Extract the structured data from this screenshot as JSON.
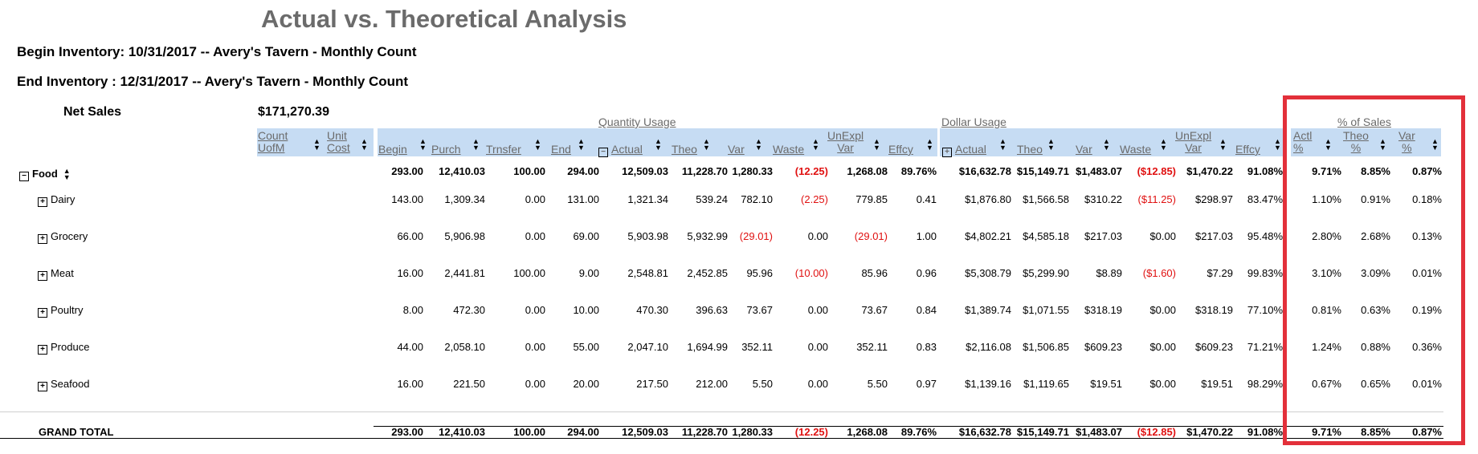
{
  "report": {
    "title": "Actual vs. Theoretical Analysis",
    "begin_inventory": "Begin Inventory: 10/31/2017 -- Avery's Tavern - Monthly Count",
    "end_inventory": "End Inventory   : 12/31/2017 -- Avery's Tavern - Monthly Count",
    "net_sales_label": "Net Sales",
    "net_sales_value": "$171,270.39"
  },
  "groups": {
    "quantity_usage": "Quantity Usage",
    "dollar_usage": "Dollar Usage",
    "pct_of_sales": "% of Sales"
  },
  "columns": {
    "count_uofm": [
      "Count",
      "UofM"
    ],
    "unit_cost": [
      "Unit",
      "Cost"
    ],
    "begin": "Begin",
    "purch": "Purch",
    "trnsfer": "Trnsfer",
    "end": "End",
    "q_actual": "Actual",
    "q_theo": "Theo",
    "q_var": "Var",
    "q_waste": "Waste",
    "q_unexpl": [
      "UnExpl",
      "Var"
    ],
    "q_effcy": "Effcy",
    "d_actual": "Actual",
    "d_theo": "Theo",
    "d_var": "Var",
    "d_waste": "Waste",
    "d_unexpl": [
      "UnExpl",
      "Var"
    ],
    "d_effcy": "Effcy",
    "p_actl": [
      "Actl",
      "%"
    ],
    "p_theo": [
      "Theo",
      "%"
    ],
    "p_var": [
      "Var",
      "%"
    ]
  },
  "rows": [
    {
      "label": "Food",
      "toggle": "−",
      "values": [
        "293.00",
        "12,410.03",
        "100.00",
        "294.00",
        "12,509.03",
        "11,228.70",
        "1,280.33",
        "(12.25)",
        "1,268.08",
        "89.76%",
        "$16,632.78",
        "$15,149.71",
        "$1,483.07",
        "($12.85)",
        "$1,470.22",
        "91.08%",
        "9.71%",
        "8.85%",
        "0.87%"
      ]
    },
    {
      "label": "Dairy",
      "toggle": "+",
      "values": [
        "143.00",
        "1,309.34",
        "0.00",
        "131.00",
        "1,321.34",
        "539.24",
        "782.10",
        "(2.25)",
        "779.85",
        "0.41",
        "$1,876.80",
        "$1,566.58",
        "$310.22",
        "($11.25)",
        "$298.97",
        "83.47%",
        "1.10%",
        "0.91%",
        "0.18%"
      ]
    },
    {
      "label": "Grocery",
      "toggle": "+",
      "values": [
        "66.00",
        "5,906.98",
        "0.00",
        "69.00",
        "5,903.98",
        "5,932.99",
        "(29.01)",
        "0.00",
        "(29.01)",
        "1.00",
        "$4,802.21",
        "$4,585.18",
        "$217.03",
        "$0.00",
        "$217.03",
        "95.48%",
        "2.80%",
        "2.68%",
        "0.13%"
      ]
    },
    {
      "label": "Meat",
      "toggle": "+",
      "values": [
        "16.00",
        "2,441.81",
        "100.00",
        "9.00",
        "2,548.81",
        "2,452.85",
        "95.96",
        "(10.00)",
        "85.96",
        "0.96",
        "$5,308.79",
        "$5,299.90",
        "$8.89",
        "($1.60)",
        "$7.29",
        "99.83%",
        "3.10%",
        "3.09%",
        "0.01%"
      ]
    },
    {
      "label": "Poultry",
      "toggle": "+",
      "values": [
        "8.00",
        "472.30",
        "0.00",
        "10.00",
        "470.30",
        "396.63",
        "73.67",
        "0.00",
        "73.67",
        "0.84",
        "$1,389.74",
        "$1,071.55",
        "$318.19",
        "$0.00",
        "$318.19",
        "77.10%",
        "0.81%",
        "0.63%",
        "0.19%"
      ]
    },
    {
      "label": "Produce",
      "toggle": "+",
      "values": [
        "44.00",
        "2,058.10",
        "0.00",
        "55.00",
        "2,047.10",
        "1,694.99",
        "352.11",
        "0.00",
        "352.11",
        "0.83",
        "$2,116.08",
        "$1,506.85",
        "$609.23",
        "$0.00",
        "$609.23",
        "71.21%",
        "1.24%",
        "0.88%",
        "0.36%"
      ]
    },
    {
      "label": "Seafood",
      "toggle": "+",
      "values": [
        "16.00",
        "221.50",
        "0.00",
        "20.00",
        "217.50",
        "212.00",
        "5.50",
        "0.00",
        "5.50",
        "0.97",
        "$1,139.16",
        "$1,119.65",
        "$19.51",
        "$0.00",
        "$19.51",
        "98.29%",
        "0.67%",
        "0.65%",
        "0.01%"
      ]
    }
  ],
  "grand_total": {
    "label": "GRAND TOTAL",
    "values": [
      "293.00",
      "12,410.03",
      "100.00",
      "294.00",
      "12,509.03",
      "11,228.70",
      "1,280.33",
      "(12.25)",
      "1,268.08",
      "89.76%",
      "$16,632.78",
      "$15,149.71",
      "$1,483.07",
      "($12.85)",
      "$1,470.22",
      "91.08%",
      "9.71%",
      "8.85%",
      "0.87%"
    ]
  }
}
